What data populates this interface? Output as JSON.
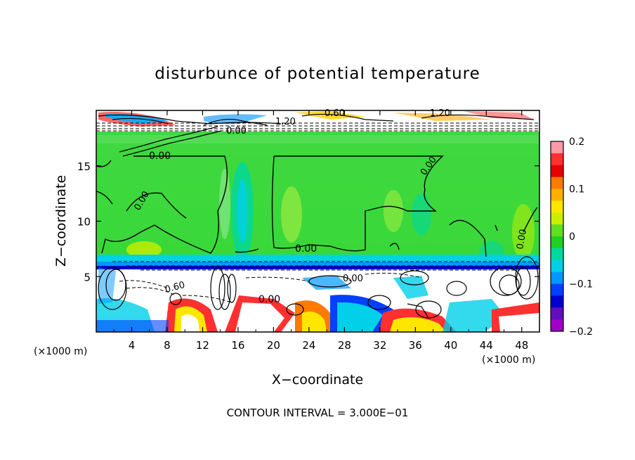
{
  "chart_data": {
    "type": "heatmap",
    "title": "disturbunce of potential temperature",
    "xlabel": "X−coordinate",
    "ylabel": "Z−coordinate",
    "x_unit": "(×1000 m)",
    "z_unit": "(×1000 m)",
    "xlim": [
      0,
      50
    ],
    "ylim": [
      0,
      20
    ],
    "x_ticks": [
      4,
      8,
      12,
      16,
      20,
      24,
      28,
      32,
      36,
      40,
      44,
      48
    ],
    "y_ticks": [
      5,
      10,
      15
    ],
    "colorbar": {
      "range": [
        -0.2,
        0.2
      ],
      "ticks": [
        "0.2",
        "0.1",
        "0",
        "−0.1",
        "−0.2"
      ],
      "colors": [
        "#ff9aa8",
        "#ff3030",
        "#e80000",
        "#ff7a00",
        "#ffb000",
        "#ffe600",
        "#c8f000",
        "#60e020",
        "#20d020",
        "#00d8a0",
        "#00d0e8",
        "#0098ff",
        "#0040ff",
        "#0000d0",
        "#6010c0",
        "#a000c8"
      ]
    },
    "contour_labels": [
      "0.00",
      "0.00",
      "0.00",
      "0.00",
      "0.00",
      "0.00",
      "0.60",
      "0.00",
      "0.60",
      "1.20",
      "1.20",
      "0.00"
    ],
    "contour_interval": "CONTOUR INTERVAL = 3.000E−01"
  }
}
